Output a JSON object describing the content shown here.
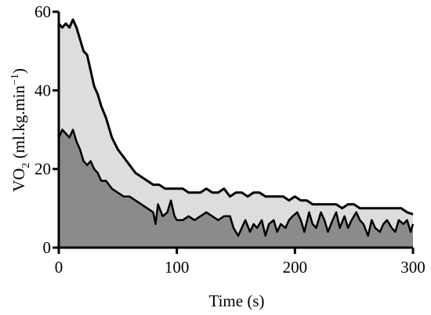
{
  "chart_data": {
    "type": "area",
    "xlabel": "Time (s)",
    "ylabel": {
      "main": "VO",
      "sub": "2",
      "units": " (ml.kg.min",
      "sup": "−1",
      "close": ")"
    },
    "xlim": [
      0,
      300
    ],
    "ylim": [
      0,
      60
    ],
    "x_ticks": [
      0,
      100,
      200,
      300
    ],
    "y_ticks": [
      0,
      20,
      40,
      60
    ],
    "grid": false,
    "colors": {
      "upper_fill": "#dcdedd",
      "lower_fill": "#8a8b8b",
      "line": "#000000"
    },
    "series": [
      {
        "x": [
          0,
          3,
          6,
          9,
          12,
          15,
          18,
          21,
          24,
          27,
          30,
          33,
          36,
          40,
          45,
          50,
          55,
          60,
          65,
          70,
          75,
          80,
          85,
          90,
          95,
          100,
          105,
          110,
          115,
          120,
          125,
          130,
          135,
          140,
          145,
          150,
          155,
          160,
          165,
          170,
          175,
          180,
          185,
          190,
          195,
          200,
          205,
          210,
          215,
          220,
          225,
          230,
          235,
          240,
          245,
          250,
          255,
          260,
          265,
          270,
          275,
          280,
          285,
          290,
          295,
          300
        ],
        "values": [
          57,
          56,
          57,
          56,
          58,
          56,
          53,
          50,
          49,
          45,
          41,
          39,
          36,
          33,
          28,
          25,
          23,
          21,
          19,
          18,
          17,
          16,
          16,
          15,
          15,
          15,
          15,
          14,
          14,
          14,
          15,
          14,
          14,
          15,
          13,
          14,
          14,
          13,
          14,
          14,
          13,
          13,
          13,
          13,
          12,
          13,
          12,
          12,
          11,
          11,
          11,
          11,
          11,
          10,
          11,
          11,
          10,
          10,
          10,
          10,
          10,
          10,
          10,
          10,
          9,
          8.5
        ]
      },
      {
        "x": [
          0,
          3,
          6,
          9,
          12,
          15,
          18,
          21,
          24,
          27,
          30,
          33,
          36,
          40,
          45,
          50,
          55,
          60,
          65,
          70,
          75,
          80,
          82,
          84,
          88,
          92,
          95,
          98,
          100,
          105,
          110,
          115,
          120,
          125,
          130,
          135,
          140,
          145,
          148,
          152,
          155,
          158,
          162,
          165,
          168,
          172,
          175,
          178,
          182,
          185,
          188,
          192,
          195,
          198,
          202,
          205,
          208,
          212,
          215,
          218,
          222,
          225,
          228,
          232,
          235,
          238,
          242,
          245,
          248,
          252,
          255,
          258,
          262,
          265,
          268,
          272,
          275,
          278,
          282,
          285,
          288,
          292,
          295,
          298,
          300
        ],
        "values": [
          28,
          30,
          29,
          28,
          30,
          27,
          25,
          22,
          21,
          22,
          20,
          19,
          17,
          17,
          15,
          14,
          13,
          13,
          12,
          11,
          10,
          9,
          6,
          11,
          8,
          9,
          12,
          8,
          7,
          7,
          8,
          7,
          8,
          9,
          8,
          7,
          8,
          8,
          5,
          3,
          5,
          7,
          4,
          6,
          5,
          7,
          3,
          6,
          7,
          4,
          6,
          5,
          7,
          8,
          9,
          7,
          4,
          9,
          6,
          5,
          9,
          7,
          4,
          7,
          9,
          5,
          8,
          5,
          7,
          9,
          7,
          6,
          3,
          7,
          5,
          4,
          6,
          7,
          5,
          4,
          7,
          6,
          7,
          4,
          6
        ]
      }
    ]
  }
}
